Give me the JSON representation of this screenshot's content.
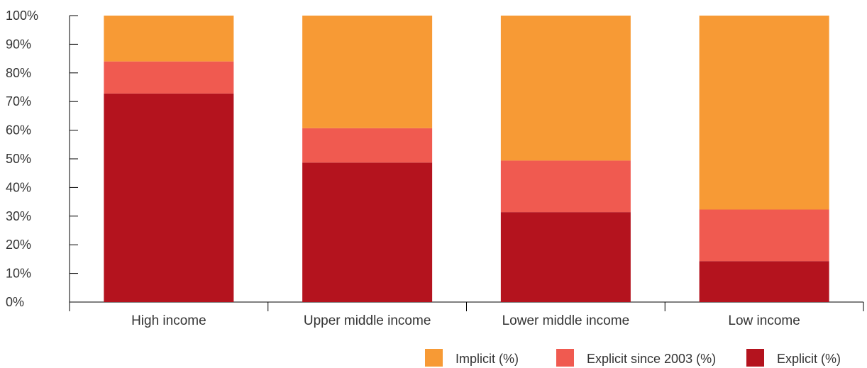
{
  "chart_data": {
    "type": "bar",
    "stacked": true,
    "categories": [
      "High income",
      "Upper middle income",
      "Lower middle income",
      "Low income"
    ],
    "series": [
      {
        "name": "Explicit (%)",
        "color": "#b4131e",
        "values": [
          72.8,
          48.7,
          31.4,
          14.3
        ]
      },
      {
        "name": "Explicit since 2003 (%)",
        "color": "#f05a50",
        "values": [
          11.2,
          12.0,
          18.0,
          18.0
        ]
      },
      {
        "name": "Implicit (%)",
        "color": "#f79a35",
        "values": [
          16.0,
          39.3,
          50.6,
          67.7
        ]
      }
    ],
    "legend_order": [
      "Implicit (%)",
      "Explicit since 2003 (%)",
      "Explicit (%)"
    ],
    "legend_position": "bottom-right",
    "ylim": [
      0,
      100
    ],
    "yticks": [
      "0%",
      "10%",
      "20%",
      "30%",
      "40%",
      "50%",
      "60%",
      "70%",
      "80%",
      "90%",
      "100%"
    ],
    "grid": false,
    "title": "",
    "xlabel": "",
    "ylabel": ""
  }
}
